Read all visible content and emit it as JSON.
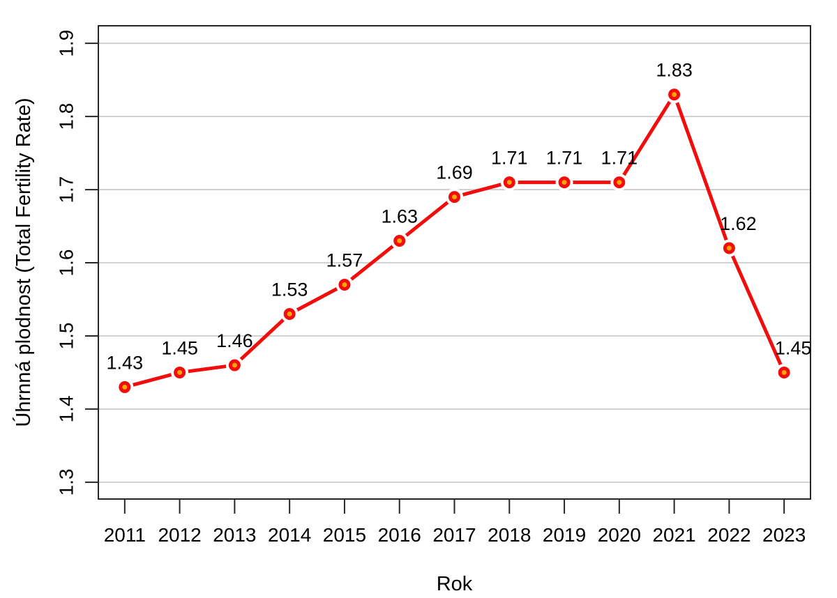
{
  "chart_data": {
    "type": "line",
    "title": "",
    "xlabel": "Rok",
    "ylabel": "Úhrnná plodnost (Total Fertility Rate)",
    "x": [
      2011,
      2012,
      2013,
      2014,
      2015,
      2016,
      2017,
      2018,
      2019,
      2020,
      2021,
      2022,
      2023
    ],
    "values": [
      1.43,
      1.45,
      1.46,
      1.53,
      1.57,
      1.63,
      1.69,
      1.71,
      1.71,
      1.71,
      1.83,
      1.62,
      1.45
    ],
    "point_labels": [
      "1.43",
      "1.45",
      "1.46",
      "1.53",
      "1.57",
      "1.63",
      "1.69",
      "1.71",
      "1.71",
      "1.71",
      "1.83",
      "1.62",
      "1.45"
    ],
    "point_label_dx": [
      0,
      0,
      0,
      0,
      0,
      0,
      0,
      0,
      0,
      0,
      0,
      13,
      13
    ],
    "x_tick_labels": [
      "2011",
      "2012",
      "2013",
      "2014",
      "2015",
      "2016",
      "2017",
      "2018",
      "2019",
      "2020",
      "2021",
      "2022",
      "2023"
    ],
    "y_ticks": [
      1.3,
      1.4,
      1.5,
      1.6,
      1.7,
      1.8,
      1.9
    ],
    "y_tick_labels": [
      "1.3",
      "1.4",
      "1.5",
      "1.6",
      "1.7",
      "1.8",
      "1.9"
    ],
    "xlim": [
      2010.52,
      2023.48
    ],
    "ylim": [
      1.277,
      1.924
    ],
    "grid": true,
    "legend": "none",
    "colors": {
      "line": "#f20d0d",
      "marker_fill": "#ffa500",
      "marker_stroke": "#f20d0d",
      "grid": "#cdcdcd",
      "box": "#262626",
      "text": "#000000",
      "background": "#ffffff"
    }
  }
}
